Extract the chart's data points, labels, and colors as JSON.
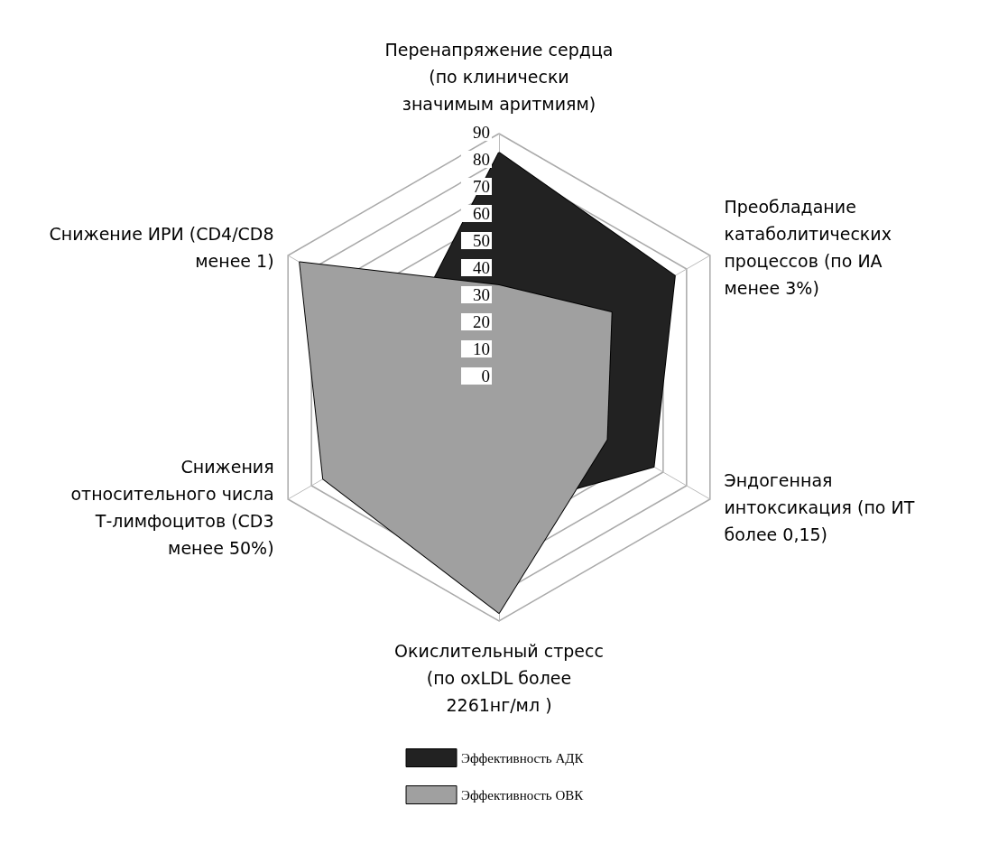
{
  "chart_data": {
    "type": "radar",
    "categories": [
      "Перенапряжение сердца (по клинически значимым аритмиям)",
      "Преобладание катаболитических процессов (по ИА менее 3%)",
      "Эндогенная интоксикация (по ИТ более 0,15)",
      "Окислительный стресс (по oxLDL более 2261нг/мл )",
      "Снижения относительного числа Т-лимфоцитов (CD3 менее 50%)",
      "Снижение ИРИ (CD4/CD8 менее 1)"
    ],
    "series": [
      {
        "name": "Эффективность АДК",
        "color": "#222222",
        "values": [
          83,
          75,
          66,
          49,
          null,
          38
        ]
      },
      {
        "name": "Эффективность ОВК",
        "color": "#a0a0a0",
        "values": [
          34,
          48,
          46,
          87,
          75,
          85
        ]
      }
    ],
    "ylim": [
      0,
      90
    ],
    "yticks": [
      0,
      10,
      20,
      30,
      40,
      50,
      60,
      70,
      80,
      90
    ],
    "legend": "bottom"
  }
}
